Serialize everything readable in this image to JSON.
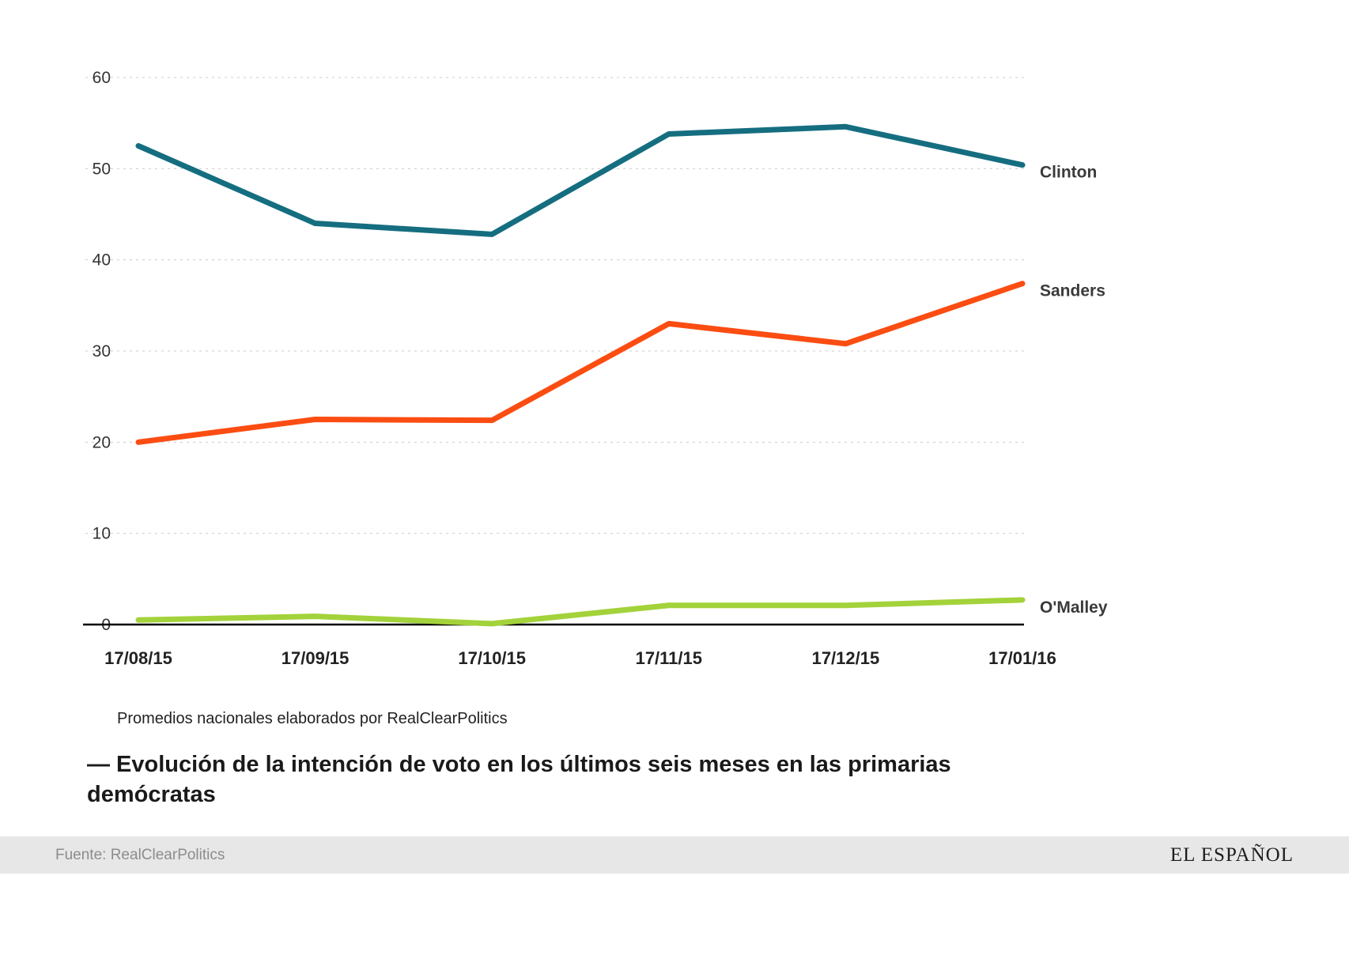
{
  "chart_data": {
    "type": "line",
    "x": [
      "17/08/15",
      "17/09/15",
      "17/10/15",
      "17/11/15",
      "17/12/15",
      "17/01/16"
    ],
    "series": [
      {
        "name": "Clinton",
        "color": "#156e80",
        "values": [
          52.5,
          44.0,
          42.8,
          53.8,
          54.6,
          50.4
        ]
      },
      {
        "name": "Sanders",
        "color": "#fb4d12",
        "values": [
          20.0,
          22.5,
          22.4,
          33.0,
          30.8,
          37.4
        ]
      },
      {
        "name": "O'Malley",
        "color": "#a3d23a",
        "values": [
          0.5,
          0.9,
          0.1,
          2.1,
          2.1,
          2.7
        ]
      }
    ],
    "ylim": [
      0,
      60
    ],
    "yticks": [
      0,
      10,
      20,
      30,
      40,
      50,
      60
    ],
    "grid": "horizontal dashed gridlines, solid baseline at 0",
    "legend_position": "labels at right end of each line",
    "colors": {
      "gridline": "#cccccc",
      "axis_line": "#000000",
      "tick_label": "#333333",
      "x_label": "#222222",
      "series_label": "#3a3a3a"
    }
  },
  "caption": "Promedios nacionales elaborados por RealClearPolitics",
  "title": "— Evolución de la intención de voto en los últimos seis meses en las primarias demócratas",
  "footer": {
    "source": "Fuente: RealClearPolitics",
    "brand": "EL ESPAÑOL"
  }
}
